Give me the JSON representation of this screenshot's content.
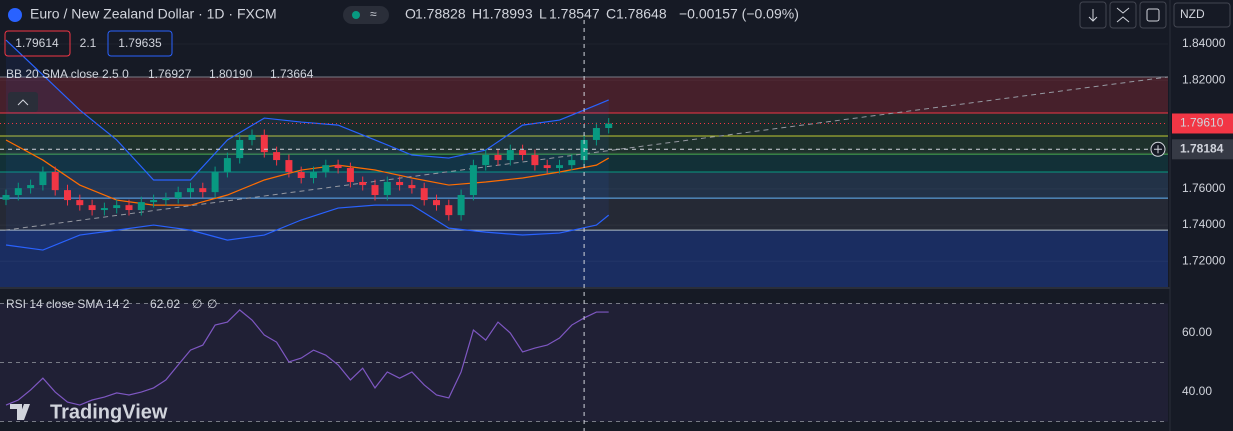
{
  "chart_data": {
    "type": "candlestick",
    "title": "Euro / New Zealand Dollar · 1D · FXCM",
    "header": {
      "ohlc_labels": [
        "O",
        "H",
        "L",
        "C"
      ],
      "ohlc_values": [
        "1.78828",
        "1.78993",
        "1.78547",
        "1.78648"
      ],
      "change": "−0.00157 (−0.09%)",
      "bid": "1.79614",
      "spread": "2.1",
      "ask": "1.79635",
      "currency": "NZD"
    },
    "bb_legend": {
      "label": "BB 20 SMA close 2.5 0",
      "values": [
        "1.76927",
        "1.80190",
        "1.73664"
      ]
    },
    "rsi_legend": {
      "label": "RSI 14 close SMA 14 2",
      "values": [
        "62.02",
        "∅",
        "∅"
      ]
    },
    "brand": "TradingView",
    "up_color": "#089981",
    "down_color": "#f23645",
    "open": [
      1.754,
      1.7566,
      1.7604,
      1.7621,
      1.7693,
      1.7593,
      1.7538,
      1.751,
      1.7483,
      1.7494,
      1.751,
      1.7483,
      1.7527,
      1.7538,
      1.7549,
      1.7582,
      1.7604,
      1.7582,
      1.7693,
      1.777,
      1.787,
      1.7898,
      1.7803,
      1.7759,
      1.7693,
      1.766,
      1.7693,
      1.7731,
      1.7715,
      1.7638,
      1.7621,
      1.7566,
      1.7638,
      1.7621,
      1.7604,
      1.7538,
      1.751,
      1.7455,
      1.7566,
      1.7731,
      1.7787,
      1.7759,
      1.7814,
      1.7787,
      1.7731,
      1.7715,
      1.7731,
      1.7759,
      1.787,
      1.7936
    ],
    "high": [
      1.7596,
      1.7634,
      1.7651,
      1.7723,
      1.7723,
      1.7623,
      1.7568,
      1.754,
      1.7524,
      1.754,
      1.754,
      1.7557,
      1.7568,
      1.7579,
      1.7612,
      1.7634,
      1.7634,
      1.7723,
      1.78,
      1.79,
      1.7928,
      1.7928,
      1.7833,
      1.7789,
      1.7723,
      1.7723,
      1.7761,
      1.7761,
      1.7745,
      1.7668,
      1.7651,
      1.7668,
      1.7668,
      1.7651,
      1.7634,
      1.7568,
      1.754,
      1.7596,
      1.7761,
      1.7817,
      1.7817,
      1.7844,
      1.7844,
      1.7817,
      1.7761,
      1.7761,
      1.7789,
      1.79,
      1.7966,
      1.7991
    ],
    "low": [
      1.751,
      1.7536,
      1.7574,
      1.7591,
      1.7563,
      1.7508,
      1.748,
      1.7453,
      1.7453,
      1.7464,
      1.7453,
      1.7453,
      1.7497,
      1.7508,
      1.7519,
      1.7552,
      1.7552,
      1.7552,
      1.7663,
      1.774,
      1.784,
      1.7773,
      1.7729,
      1.7663,
      1.763,
      1.763,
      1.7663,
      1.7685,
      1.7608,
      1.7591,
      1.7536,
      1.7536,
      1.7591,
      1.7574,
      1.7508,
      1.748,
      1.7425,
      1.7425,
      1.7536,
      1.7701,
      1.7729,
      1.7729,
      1.7757,
      1.7701,
      1.7685,
      1.7685,
      1.7701,
      1.7729,
      1.784,
      1.7906
    ],
    "close": [
      1.7566,
      1.7604,
      1.7621,
      1.7693,
      1.7593,
      1.7538,
      1.751,
      1.7483,
      1.7494,
      1.751,
      1.7483,
      1.7527,
      1.7538,
      1.7549,
      1.7582,
      1.7604,
      1.7582,
      1.7693,
      1.777,
      1.787,
      1.7898,
      1.7803,
      1.7759,
      1.7693,
      1.766,
      1.7693,
      1.7731,
      1.7715,
      1.7638,
      1.7621,
      1.7566,
      1.7638,
      1.7621,
      1.7604,
      1.7538,
      1.751,
      1.7455,
      1.7566,
      1.7731,
      1.7787,
      1.7759,
      1.7814,
      1.7787,
      1.7731,
      1.7715,
      1.7731,
      1.7759,
      1.787,
      1.7936,
      1.7961
    ],
    "bb": {
      "x": [
        0,
        3,
        6,
        9,
        12,
        15,
        18,
        21,
        24,
        27,
        30,
        33,
        36,
        39,
        42,
        45,
        48,
        49
      ],
      "series": [
        {
          "name": "upper",
          "color": "#2962ff",
          "values": [
            1.8422,
            1.8229,
            1.8035,
            1.787,
            1.7649,
            1.7649,
            1.787,
            1.7991,
            1.7969,
            1.7952,
            1.787,
            1.7787,
            1.777,
            1.7814,
            1.7952,
            1.798,
            1.8063,
            1.8091
          ]
        },
        {
          "name": "basis",
          "color": "#ff6d00",
          "values": [
            1.787,
            1.7759,
            1.7621,
            1.7538,
            1.751,
            1.751,
            1.7566,
            1.7649,
            1.7704,
            1.7731,
            1.7704,
            1.766,
            1.7621,
            1.7638,
            1.766,
            1.7693,
            1.7731,
            1.777
          ]
        },
        {
          "name": "lower",
          "color": "#2962ff",
          "values": [
            1.729,
            1.7262,
            1.7345,
            1.7372,
            1.74,
            1.7372,
            1.7317,
            1.7345,
            1.7428,
            1.7494,
            1.751,
            1.751,
            1.7383,
            1.7361,
            1.7345,
            1.7356,
            1.74,
            1.7455
          ]
        }
      ]
    },
    "levels": [
      1.8218,
      1.8019,
      1.7892,
      1.7792,
      1.7693,
      1.7549,
      1.7372
    ],
    "level_colors": [
      "#787b86",
      "#f23645",
      "#c0ca33",
      "#4caf50",
      "#089981",
      "#64b5f6",
      "#b0bec5"
    ],
    "zone_colors": [
      "rgba(242,54,69,0.22)",
      "rgba(76,175,80,0.12)",
      "rgba(76,175,80,0.16)",
      "rgba(0,150,136,0.18)",
      "rgba(100,181,246,0.16)",
      "rgba(120,123,134,0.16)",
      "rgba(41,98,255,0.28)"
    ],
    "trendline": [
      1.7372,
      1.8218
    ],
    "ylim": [
      1.7058,
      1.8643
    ],
    "yticks": [
      {
        "value": 1.84,
        "label": "1.84000"
      },
      {
        "value": 1.82,
        "label": "1.82000"
      },
      {
        "value": 1.78,
        "label": ""
      },
      {
        "value": 1.76,
        "label": "1.76000"
      },
      {
        "value": 1.74,
        "label": "1.74000"
      },
      {
        "value": 1.72,
        "label": "1.72000"
      }
    ],
    "last_price": {
      "value": 1.7961,
      "label": "1.79610"
    },
    "crosshair": {
      "index": 47,
      "value": 1.78184,
      "label": "1.78184"
    },
    "rsi": {
      "color": "#7e57c2",
      "values": [
        35.6,
        37.3,
        40.7,
        44.7,
        40.0,
        36.6,
        35.6,
        37.3,
        38.3,
        39.7,
        39.0,
        40.0,
        41.4,
        44.1,
        49.2,
        54.2,
        55.9,
        62.7,
        63.7,
        67.8,
        64.4,
        59.3,
        56.9,
        50.2,
        51.5,
        54.2,
        52.5,
        49.2,
        44.1,
        48.1,
        41.4,
        46.8,
        44.7,
        46.8,
        42.4,
        39.0,
        38.0,
        46.8,
        61.0,
        57.6,
        63.7,
        60.0,
        53.6,
        54.9,
        55.9,
        58.3,
        62.7,
        65.1,
        67.1,
        67.1
      ],
      "ylim": [
        26.8,
        75.25
      ],
      "yticks": [
        {
          "value": 60,
          "label": "60.00"
        },
        {
          "value": 40,
          "label": "40.00"
        }
      ],
      "levels": [
        70,
        50,
        30
      ]
    }
  }
}
